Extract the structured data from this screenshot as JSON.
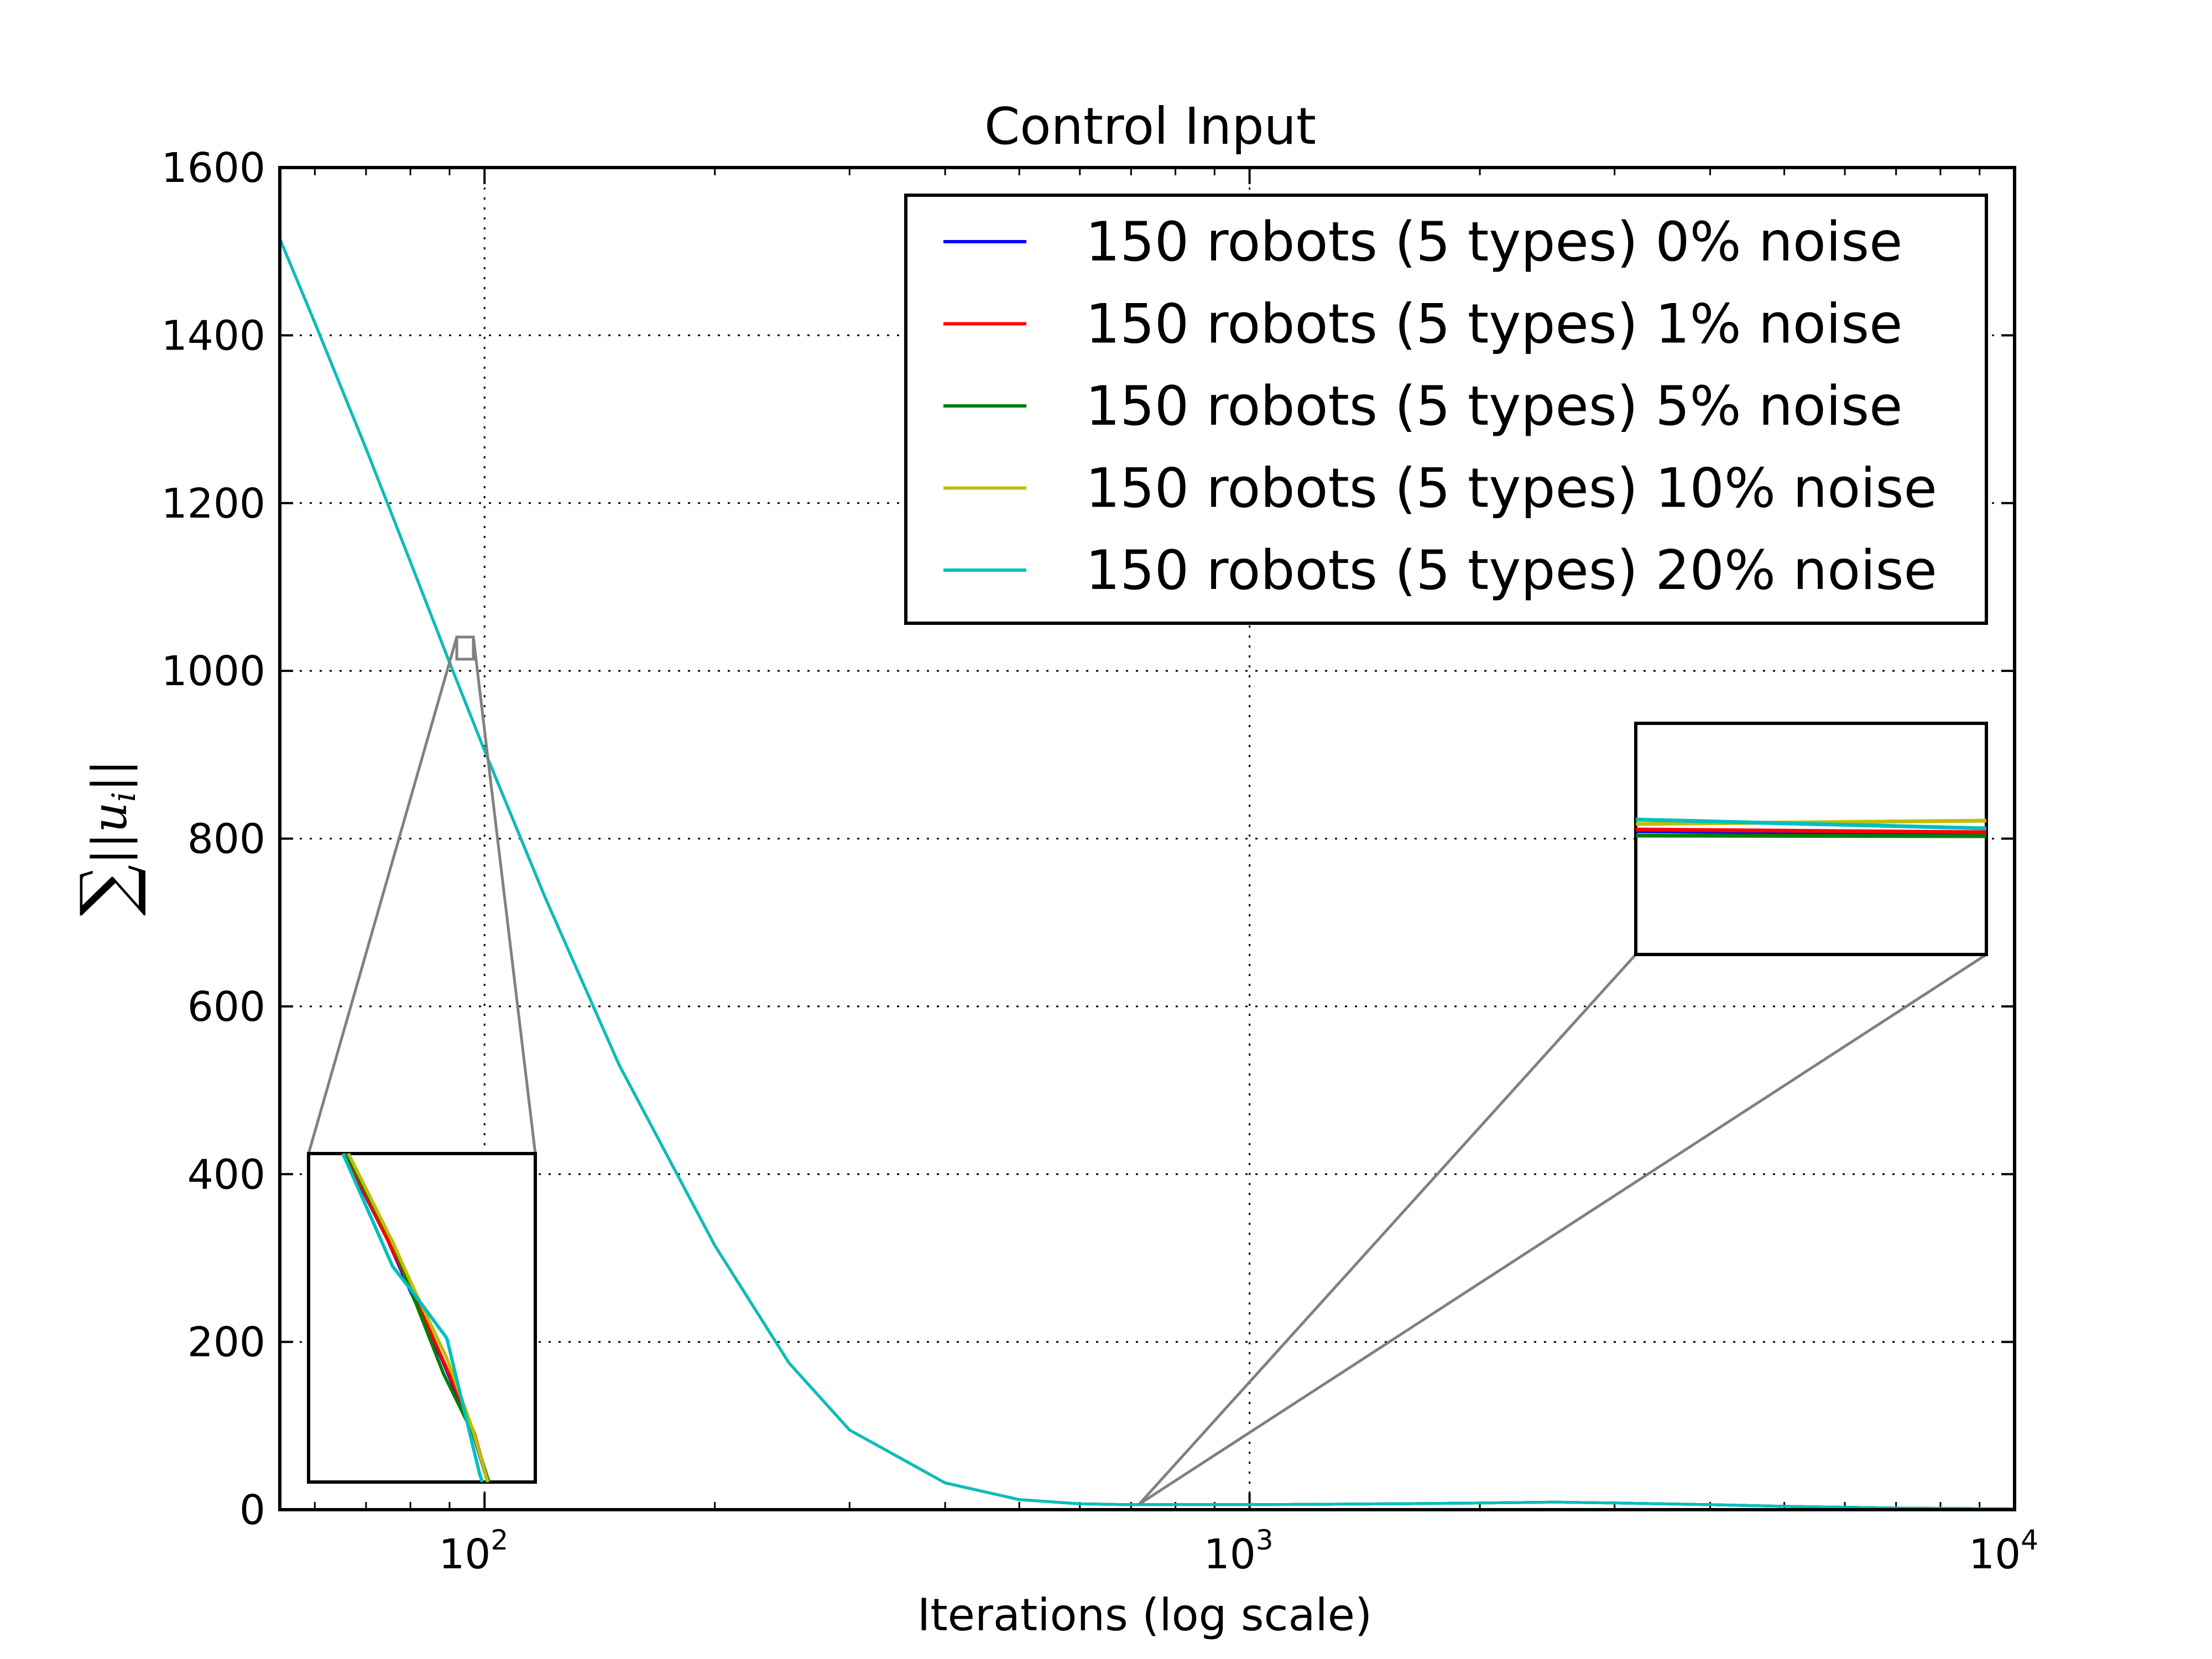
{
  "chart_data": {
    "type": "line",
    "title": "Control Input",
    "xlabel": "Iterations (log scale)",
    "ylabel": "∑||u_i||",
    "x_scale": "log",
    "xlim": [
      54,
      10000
    ],
    "ylim": [
      0,
      1600
    ],
    "grid": true,
    "legend_position": "top-right",
    "x_ticks": [
      {
        "base": "10",
        "exp": "2",
        "value": 100
      },
      {
        "base": "10",
        "exp": "3",
        "value": 1000
      },
      {
        "base": "10",
        "exp": "4",
        "value": 10000
      }
    ],
    "y_ticks": [
      "0",
      "200",
      "400",
      "600",
      "800",
      "1000",
      "1200",
      "1400",
      "1600"
    ],
    "x": [
      54,
      60,
      70,
      80,
      90,
      100,
      120,
      150,
      200,
      250,
      300,
      400,
      500,
      600,
      700,
      800,
      1000,
      1500,
      2000,
      2500,
      3000,
      4000,
      5000,
      7000,
      10000
    ],
    "series": [
      {
        "name": "150 robots (5 types) 0% noise",
        "color": "#0000ff",
        "values": [
          1515,
          1415,
          1265,
          1130,
          1010,
          905,
          730,
          530,
          315,
          175,
          95,
          32,
          12,
          7,
          6,
          6,
          6,
          7,
          8,
          9,
          8,
          6,
          4,
          2,
          1
        ]
      },
      {
        "name": "150 robots (5 types) 1% noise",
        "color": "#ff0000",
        "values": [
          1515,
          1415,
          1265,
          1130,
          1010,
          905,
          730,
          530,
          315,
          175,
          95,
          32,
          12,
          7,
          6,
          6,
          6,
          7,
          8,
          9,
          8,
          6,
          4,
          2,
          1
        ]
      },
      {
        "name": "150 robots (5 types) 5% noise",
        "color": "#008000",
        "values": [
          1515,
          1415,
          1265,
          1130,
          1010,
          905,
          730,
          530,
          315,
          175,
          95,
          32,
          12,
          7,
          6,
          6,
          6,
          7,
          8,
          9,
          8,
          6,
          4,
          2,
          1
        ]
      },
      {
        "name": "150 robots (5 types) 10% noise",
        "color": "#bfbf00",
        "values": [
          1515,
          1415,
          1265,
          1130,
          1010,
          905,
          730,
          530,
          315,
          175,
          95,
          32,
          12,
          7,
          6,
          6,
          6,
          7,
          8,
          9,
          8,
          6,
          4,
          2,
          1
        ]
      },
      {
        "name": "150 robots (5 types) 20% noise",
        "color": "#00bfbf",
        "values": [
          1515,
          1415,
          1265,
          1130,
          1010,
          905,
          730,
          530,
          315,
          175,
          95,
          32,
          12,
          7,
          6,
          6,
          6,
          7,
          8,
          9,
          8,
          6,
          4,
          2,
          1
        ]
      }
    ]
  },
  "colors": {
    "inset_connector": "#808080",
    "frame": "#000000",
    "grid": "#000000"
  }
}
